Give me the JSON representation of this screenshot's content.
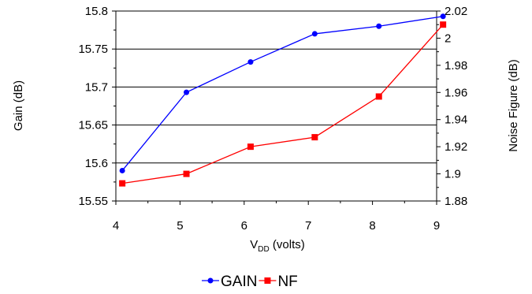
{
  "chart_data": {
    "type": "line",
    "xlabel": "V",
    "xlabel_subscript": "DD",
    "xlabel_suffix": " (volts)",
    "ylabel_left": "Gain (dB)",
    "ylabel_right": "Noise Figure (dB)",
    "x_ticks": [
      "4",
      "5",
      "6",
      "7",
      "8",
      "9"
    ],
    "xlim": [
      4,
      9
    ],
    "y_left_ticks": [
      "15.55",
      "15.6",
      "15.65",
      "15.7",
      "15.75",
      "15.8"
    ],
    "ylim_left": [
      15.55,
      15.8
    ],
    "y_right_ticks": [
      "1.88",
      "1.9",
      "1.92",
      "1.94",
      "1.96",
      "1.98",
      "2",
      "2.02"
    ],
    "ylim_right": [
      1.88,
      2.02
    ],
    "grid": "horizontal",
    "legend_position": "bottom",
    "series": [
      {
        "name": "GAIN",
        "axis": "left",
        "color": "#0000ff",
        "marker": "circle",
        "x": [
          4.1,
          5.1,
          6.1,
          7.1,
          8.1,
          9.1
        ],
        "values": [
          15.59,
          15.693,
          15.733,
          15.77,
          15.78,
          15.793
        ]
      },
      {
        "name": "NF",
        "axis": "right",
        "color": "#ff0000",
        "marker": "square",
        "x": [
          4.1,
          5.1,
          6.1,
          7.1,
          8.1,
          9.1
        ],
        "values": [
          1.893,
          1.9,
          1.92,
          1.927,
          1.957,
          2.01
        ]
      }
    ]
  }
}
